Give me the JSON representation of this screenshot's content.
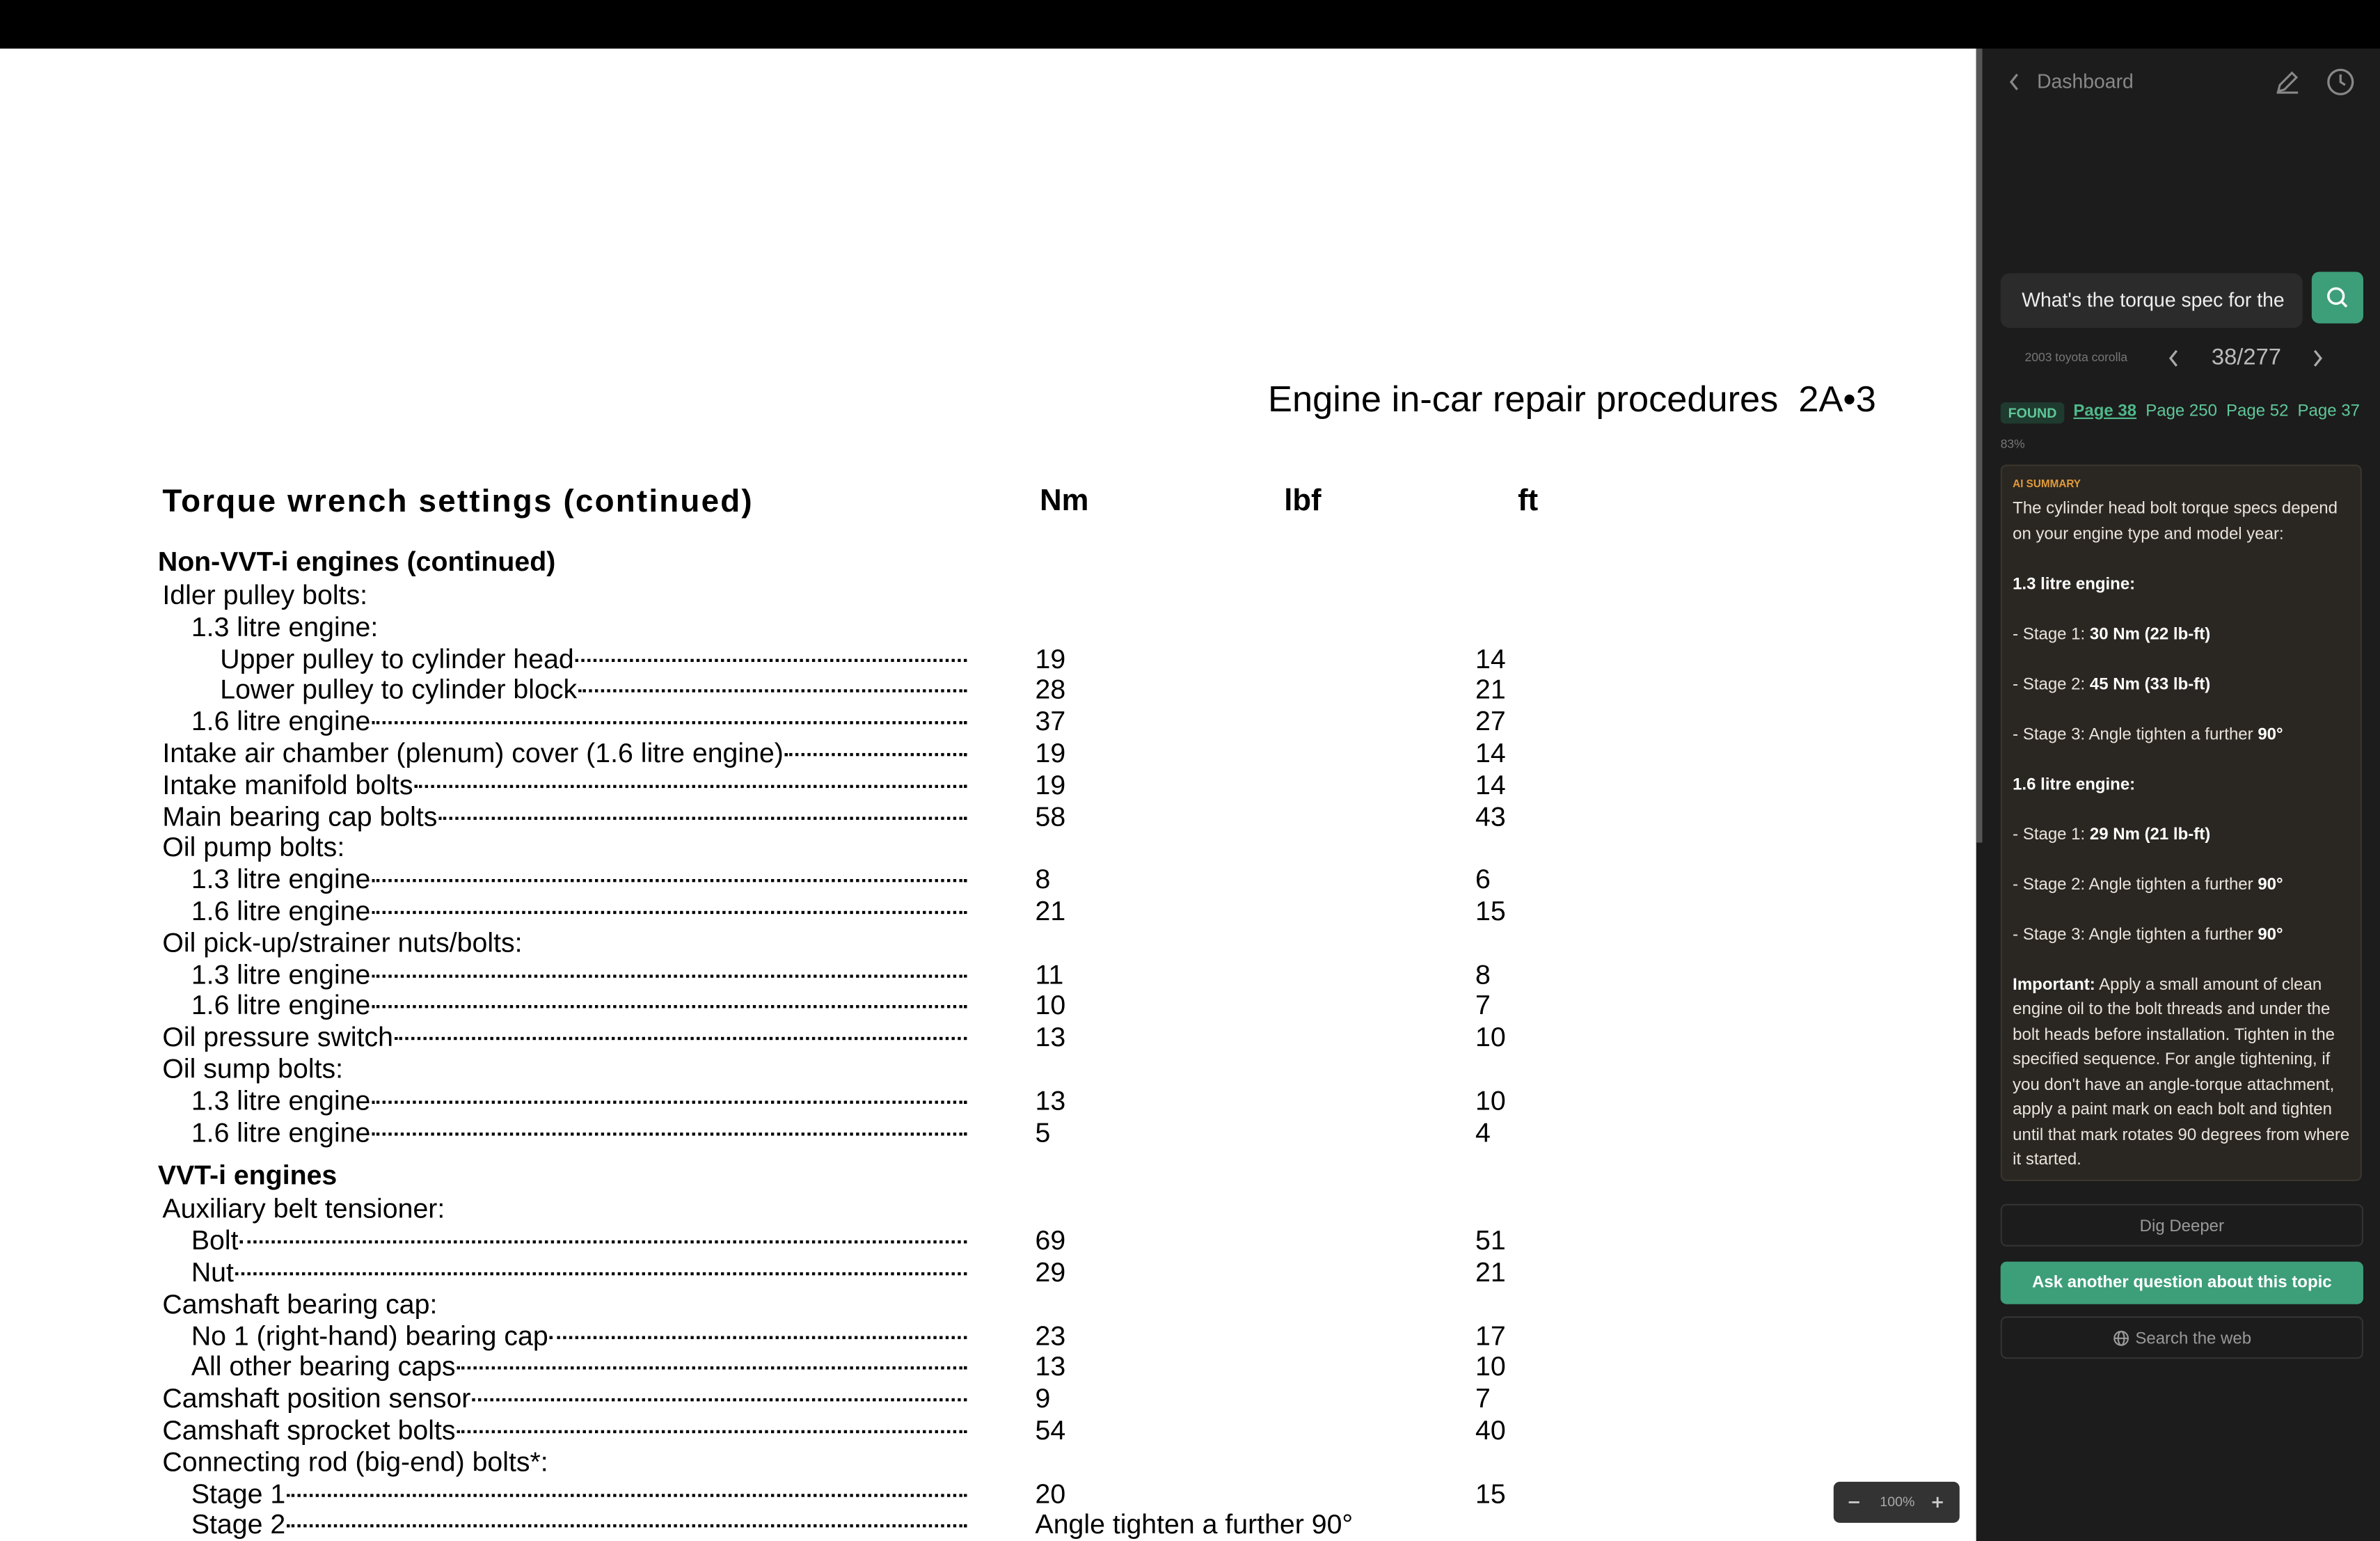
{
  "document": {
    "running_header": "Engine in-car repair procedures  2A•3",
    "table": {
      "title": "Torque wrench settings (continued)",
      "columns": [
        "Nm",
        "lbf",
        "ft"
      ],
      "sections": [
        {
          "heading": "Non-VVT-i engines (continued)",
          "items": [
            {
              "label": "Idler pulley bolts:",
              "items": [
                {
                  "label": "1.3 litre engine:",
                  "items": [
                    {
                      "label": "Upper pulley to cylinder head",
                      "nm": 19,
                      "ft": 14
                    },
                    {
                      "label": "Lower pulley to cylinder block",
                      "nm": 28,
                      "ft": 21
                    }
                  ]
                },
                {
                  "label": "1.6 litre engine",
                  "nm": 37,
                  "ft": 27
                }
              ]
            },
            {
              "label": "Intake air chamber (plenum) cover (1.6 litre engine)",
              "nm": 19,
              "ft": 14
            },
            {
              "label": "Intake manifold bolts",
              "nm": 19,
              "ft": 14
            },
            {
              "label": "Main bearing cap bolts",
              "nm": 58,
              "ft": 43
            },
            {
              "label": "Oil pump bolts:",
              "items": [
                {
                  "label": "1.3 litre engine",
                  "nm": 8,
                  "ft": 6
                },
                {
                  "label": "1.6 litre engine",
                  "nm": 21,
                  "ft": 15
                }
              ]
            },
            {
              "label": "Oil pick-up/strainer nuts/bolts:",
              "items": [
                {
                  "label": "1.3 litre engine",
                  "nm": 11,
                  "ft": 8
                },
                {
                  "label": "1.6 litre engine",
                  "nm": 10,
                  "ft": 7
                }
              ]
            },
            {
              "label": "Oil pressure switch",
              "nm": 13,
              "ft": 10
            },
            {
              "label": "Oil sump bolts:",
              "items": [
                {
                  "label": "1.3 litre engine",
                  "nm": 13,
                  "ft": 10
                },
                {
                  "label": "1.6 litre engine",
                  "nm": 5,
                  "ft": 4
                }
              ]
            }
          ]
        },
        {
          "heading": "VVT-i engines",
          "items": [
            {
              "label": "Auxiliary belt tensioner:",
              "items": [
                {
                  "label": "Bolt",
                  "nm": 69,
                  "ft": 51
                },
                {
                  "label": "Nut",
                  "nm": 29,
                  "ft": 21
                }
              ]
            },
            {
              "label": "Camshaft bearing cap:",
              "items": [
                {
                  "label": "No 1 (right-hand) bearing cap",
                  "nm": 23,
                  "ft": 17
                },
                {
                  "label": "All other bearing caps",
                  "nm": 13,
                  "ft": 10
                }
              ]
            },
            {
              "label": "Camshaft position sensor",
              "nm": 9,
              "ft": 7
            },
            {
              "label": "Camshaft sprocket bolts",
              "nm": 54,
              "ft": 40
            },
            {
              "label": "Connecting rod (big-end) bolts*:",
              "items": [
                {
                  "label": "Stage 1",
                  "nm": 20,
                  "ft": 15
                },
                {
                  "label": "Stage 2",
                  "note": "Angle tighten a further 90°"
                }
              ]
            }
          ]
        }
      ]
    },
    "zoom": "100%"
  },
  "sidebar": {
    "back": "Dashboard",
    "query": "What's the torque spec for the",
    "doc_name": "2003 toyota corolla",
    "page": "38/277",
    "found": "FOUND",
    "pages": [
      "Page 38",
      "Page 250",
      "Page 52",
      "Page 37"
    ],
    "confidence": "83%",
    "summary": {
      "label": "AI SUMMARY",
      "blocks": [
        [
          {
            "t": "The cylinder head bolt torque specs depend on your engine type and model year:"
          }
        ],
        [
          {
            "b": "1.3 litre engine:"
          }
        ],
        [
          {
            "t": "- Stage 1: "
          },
          {
            "b": "30 Nm (22 lb-ft)"
          }
        ],
        [
          {
            "t": "- Stage 2: "
          },
          {
            "b": "45 Nm (33 lb-ft)"
          }
        ],
        [
          {
            "t": "- Stage 3: Angle tighten a further "
          },
          {
            "b": "90°"
          }
        ],
        [
          {
            "b": "1.6 litre engine:"
          }
        ],
        [
          {
            "t": "- Stage 1: "
          },
          {
            "b": "29 Nm (21 lb-ft)"
          }
        ],
        [
          {
            "t": "- Stage 2: Angle tighten a further "
          },
          {
            "b": "90°"
          }
        ],
        [
          {
            "t": "- Stage 3: Angle tighten a further "
          },
          {
            "b": "90°"
          }
        ],
        [
          {
            "b": "Important:"
          },
          {
            "t": " Apply a small amount of clean engine oil to the bolt threads and under the bolt heads before installation. Tighten in the specified sequence. For angle tightening, if you don't have an angle-torque attachment, apply a paint mark on each bolt and tighten until that mark rotates 90 degrees from where it started."
          }
        ]
      ]
    },
    "dig": "Dig Deeper",
    "ask": "Ask another question about this topic",
    "web": "Search the web"
  }
}
